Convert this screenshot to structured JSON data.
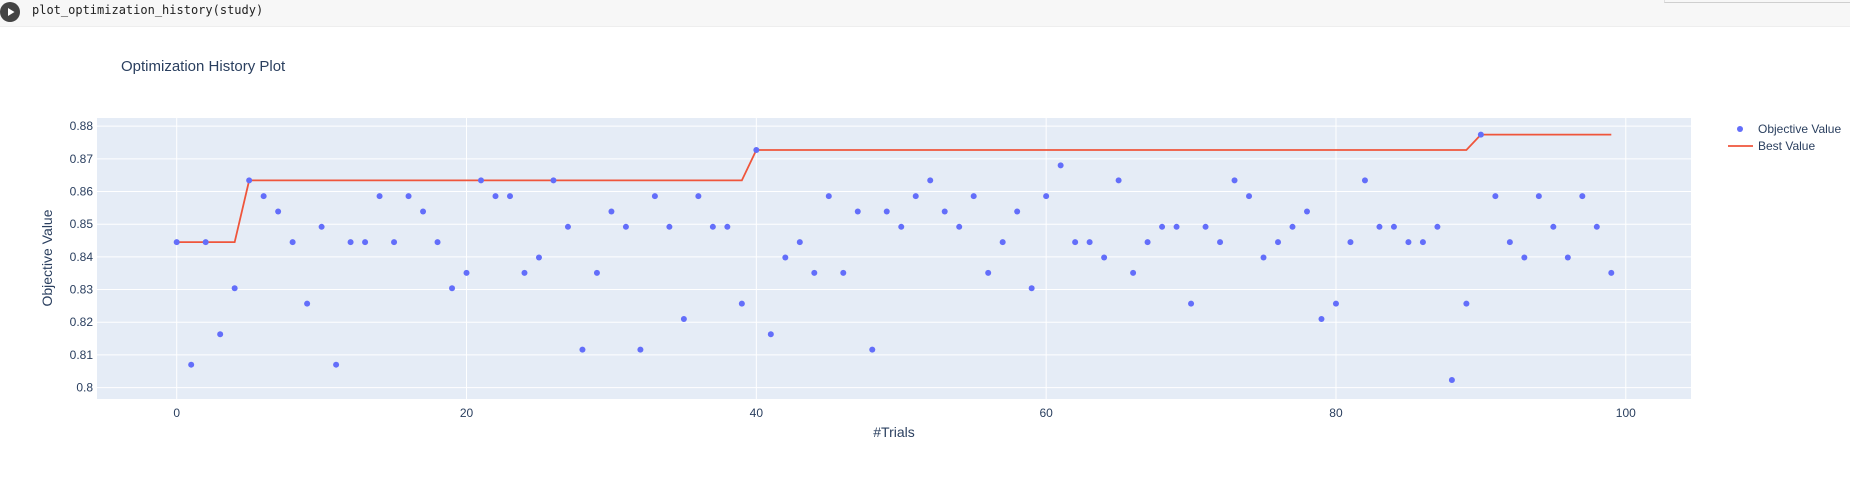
{
  "cell": {
    "code": "plot_optimization_history(study)",
    "run_icon": "play-icon"
  },
  "chart_data": {
    "type": "line",
    "title": "Optimization History Plot",
    "xlabel": "#Trials",
    "ylabel": "Objective Value",
    "xlim": [
      -5.5,
      104.5
    ],
    "ylim": [
      0.7965,
      0.8825
    ],
    "x_ticks": [
      0,
      20,
      40,
      60,
      80,
      100
    ],
    "y_ticks": [
      0.8,
      0.81,
      0.82,
      0.83,
      0.84,
      0.85,
      0.86,
      0.87,
      0.88
    ],
    "y_tick_labels": [
      "0.8",
      "0.81",
      "0.82",
      "0.83",
      "0.84",
      "0.85",
      "0.86",
      "0.87",
      "0.88"
    ],
    "grid": true,
    "legend_position": "top-right",
    "series": [
      {
        "name": "Objective Value",
        "mode": "markers",
        "color": "#636efa",
        "x": [
          0,
          1,
          2,
          3,
          4,
          5,
          6,
          7,
          8,
          9,
          10,
          11,
          12,
          13,
          14,
          15,
          16,
          17,
          18,
          19,
          20,
          21,
          22,
          23,
          24,
          25,
          26,
          27,
          28,
          29,
          30,
          31,
          32,
          33,
          34,
          35,
          36,
          37,
          38,
          39,
          40,
          41,
          42,
          43,
          44,
          45,
          46,
          47,
          48,
          49,
          50,
          51,
          52,
          53,
          54,
          55,
          56,
          57,
          58,
          59,
          60,
          61,
          62,
          63,
          64,
          65,
          66,
          67,
          68,
          69,
          70,
          71,
          72,
          73,
          74,
          75,
          76,
          77,
          78,
          79,
          80,
          81,
          82,
          83,
          84,
          85,
          86,
          87,
          88,
          89,
          90,
          91,
          92,
          93,
          94,
          95,
          96,
          97,
          98,
          99
        ],
        "y": [
          0.8445,
          0.807,
          0.8445,
          0.8163,
          0.8304,
          0.8634,
          0.8586,
          0.8539,
          0.8445,
          0.8257,
          0.8492,
          0.807,
          0.8445,
          0.8445,
          0.8586,
          0.8445,
          0.8586,
          0.8539,
          0.8445,
          0.8304,
          0.8351,
          0.8634,
          0.8586,
          0.8586,
          0.8351,
          0.8398,
          0.8634,
          0.8492,
          0.8116,
          0.8351,
          0.8539,
          0.8492,
          0.8116,
          0.8586,
          0.8492,
          0.821,
          0.8586,
          0.8492,
          0.8492,
          0.8257,
          0.8727,
          0.8163,
          0.8398,
          0.8445,
          0.8351,
          0.8586,
          0.8351,
          0.8539,
          0.8116,
          0.8539,
          0.8492,
          0.8586,
          0.8634,
          0.8539,
          0.8492,
          0.8586,
          0.8351,
          0.8445,
          0.8539,
          0.8304,
          0.8586,
          0.868,
          0.8445,
          0.8445,
          0.8398,
          0.8634,
          0.8351,
          0.8445,
          0.8492,
          0.8492,
          0.8257,
          0.8492,
          0.8445,
          0.8634,
          0.8586,
          0.8398,
          0.8445,
          0.8492,
          0.8539,
          0.821,
          0.8257,
          0.8445,
          0.8634,
          0.8492,
          0.8492,
          0.8445,
          0.8445,
          0.8492,
          0.8023,
          0.8257,
          0.8774,
          0.8586,
          0.8445,
          0.8398,
          0.8586,
          0.8492,
          0.8398,
          0.8586,
          0.8492,
          0.8351
        ]
      },
      {
        "name": "Best Value",
        "mode": "lines",
        "color": "#ef553b",
        "x": [
          0,
          1,
          2,
          3,
          4,
          5,
          6,
          7,
          8,
          9,
          10,
          11,
          12,
          13,
          14,
          15,
          16,
          17,
          18,
          19,
          20,
          21,
          22,
          23,
          24,
          25,
          26,
          27,
          28,
          29,
          30,
          31,
          32,
          33,
          34,
          35,
          36,
          37,
          38,
          39,
          40,
          41,
          42,
          43,
          44,
          45,
          46,
          47,
          48,
          49,
          50,
          51,
          52,
          53,
          54,
          55,
          56,
          57,
          58,
          59,
          60,
          61,
          62,
          63,
          64,
          65,
          66,
          67,
          68,
          69,
          70,
          71,
          72,
          73,
          74,
          75,
          76,
          77,
          78,
          79,
          80,
          81,
          82,
          83,
          84,
          85,
          86,
          87,
          88,
          89,
          90,
          91,
          92,
          93,
          94,
          95,
          96,
          97,
          98,
          99
        ],
        "y": [
          0.8445,
          0.8445,
          0.8445,
          0.8445,
          0.8445,
          0.8634,
          0.8634,
          0.8634,
          0.8634,
          0.8634,
          0.8634,
          0.8634,
          0.8634,
          0.8634,
          0.8634,
          0.8634,
          0.8634,
          0.8634,
          0.8634,
          0.8634,
          0.8634,
          0.8634,
          0.8634,
          0.8634,
          0.8634,
          0.8634,
          0.8634,
          0.8634,
          0.8634,
          0.8634,
          0.8634,
          0.8634,
          0.8634,
          0.8634,
          0.8634,
          0.8634,
          0.8634,
          0.8634,
          0.8634,
          0.8634,
          0.8727,
          0.8727,
          0.8727,
          0.8727,
          0.8727,
          0.8727,
          0.8727,
          0.8727,
          0.8727,
          0.8727,
          0.8727,
          0.8727,
          0.8727,
          0.8727,
          0.8727,
          0.8727,
          0.8727,
          0.8727,
          0.8727,
          0.8727,
          0.8727,
          0.8727,
          0.8727,
          0.8727,
          0.8727,
          0.8727,
          0.8727,
          0.8727,
          0.8727,
          0.8727,
          0.8727,
          0.8727,
          0.8727,
          0.8727,
          0.8727,
          0.8727,
          0.8727,
          0.8727,
          0.8727,
          0.8727,
          0.8727,
          0.8727,
          0.8727,
          0.8727,
          0.8727,
          0.8727,
          0.8727,
          0.8727,
          0.8727,
          0.8727,
          0.8774,
          0.8774,
          0.8774,
          0.8774,
          0.8774,
          0.8774,
          0.8774,
          0.8774,
          0.8774,
          0.8774
        ]
      }
    ]
  }
}
